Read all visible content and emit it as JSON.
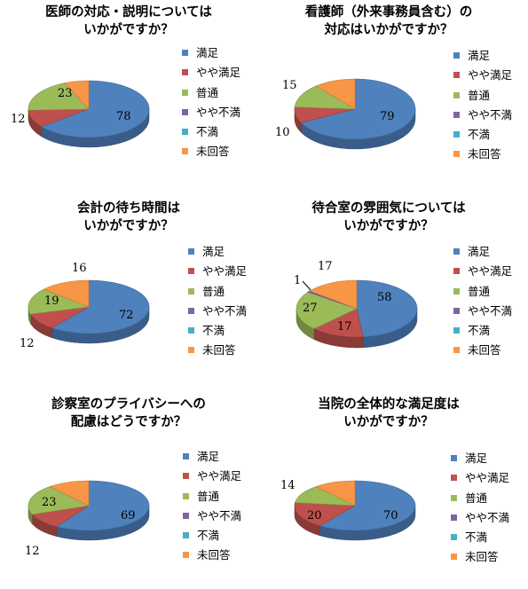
{
  "legend_colors": [
    "#4F81BD",
    "#C0504D",
    "#9BBB59",
    "#8064A2",
    "#4BACC6",
    "#F79646"
  ],
  "chart_data": [
    {
      "type": "pie",
      "title_lines": [
        "医師の対応・説明については",
        "いかがですか？"
      ],
      "categories": [
        "満足",
        "やや満足",
        "普通",
        "やや不満",
        "不満",
        "未回答"
      ],
      "values": [
        78,
        12,
        23,
        0,
        0,
        8
      ],
      "value_labels": [
        "78",
        "12",
        "23",
        "",
        "",
        ""
      ],
      "legend_position": "right"
    },
    {
      "type": "pie",
      "title_lines": [
        "看護師（外来事務員含む）の",
        "対応はいかがですか？"
      ],
      "categories": [
        "満足",
        "やや満足",
        "普通",
        "やや不満",
        "不満",
        "未回答"
      ],
      "values": [
        79,
        10,
        15,
        0,
        0,
        13
      ],
      "value_labels": [
        "79",
        "10",
        "15",
        "",
        "",
        ""
      ],
      "legend_position": "right"
    },
    {
      "type": "pie",
      "title_lines": [
        "会計の待ち時間は",
        "いかがですか？"
      ],
      "categories": [
        "満足",
        "やや満足",
        "普通",
        "やや不満",
        "不満",
        "未回答"
      ],
      "values": [
        72,
        12,
        19,
        0,
        0,
        16
      ],
      "value_labels": [
        "72",
        "12",
        "19",
        "",
        "",
        "16"
      ],
      "legend_position": "right"
    },
    {
      "type": "pie",
      "title_lines": [
        "待合室の雰囲気については",
        "いかがですか？"
      ],
      "categories": [
        "満足",
        "やや満足",
        "普通",
        "やや不満",
        "不満",
        "未回答"
      ],
      "values": [
        58,
        17,
        27,
        1,
        0,
        17
      ],
      "value_labels": [
        "58",
        "17",
        "27",
        "1",
        "",
        "17"
      ],
      "legend_position": "right"
    },
    {
      "type": "pie",
      "title_lines": [
        "診察室のプライバシーへの",
        "配慮はどうですか？"
      ],
      "categories": [
        "満足",
        "やや満足",
        "普通",
        "やや不満",
        "不満",
        "未回答"
      ],
      "values": [
        69,
        12,
        23,
        0,
        0,
        13
      ],
      "value_labels": [
        "69",
        "12",
        "23",
        "",
        "",
        ""
      ],
      "legend_position": "right"
    },
    {
      "type": "pie",
      "title_lines": [
        "当院の全体的な満足度は",
        "いかがですか？"
      ],
      "categories": [
        "満足",
        "やや満足",
        "普通",
        "やや不満",
        "不満",
        "未回答"
      ],
      "values": [
        70,
        20,
        14,
        0,
        0,
        13
      ],
      "value_labels": [
        "70",
        "20",
        "14",
        "",
        "",
        ""
      ],
      "legend_position": "right"
    }
  ]
}
